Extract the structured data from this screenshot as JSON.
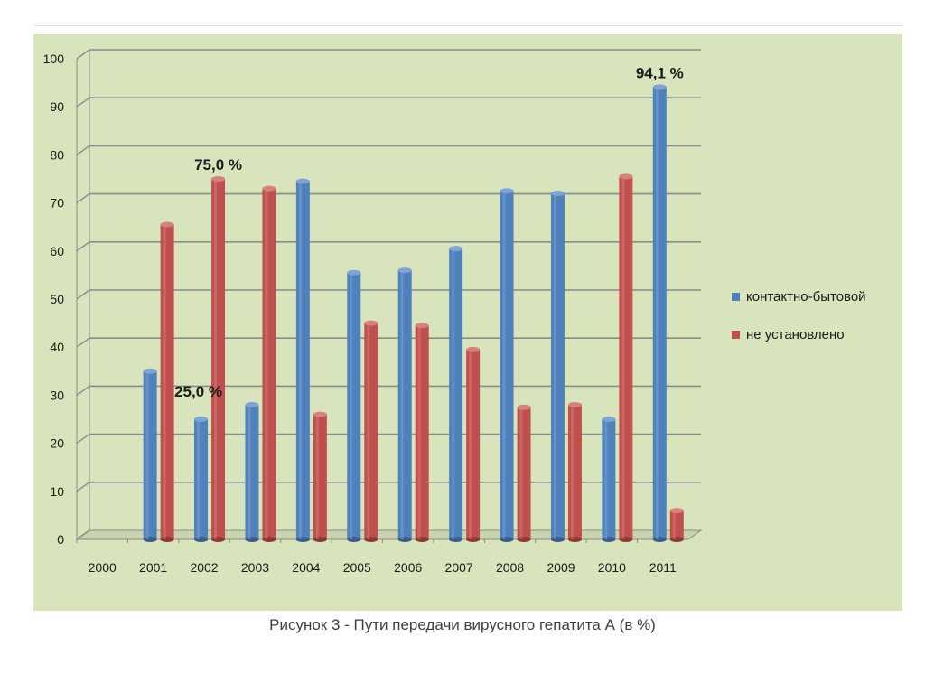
{
  "chart_data": {
    "type": "bar",
    "title": "",
    "xlabel": "",
    "ylabel": "",
    "ylim": [
      0,
      100
    ],
    "yticks": [
      0,
      10,
      20,
      30,
      40,
      50,
      60,
      70,
      80,
      90,
      100
    ],
    "categories": [
      "2000",
      "2001",
      "2002",
      "2003",
      "2004",
      "2005",
      "2006",
      "2007",
      "2008",
      "2009",
      "2010",
      "2011"
    ],
    "series": [
      {
        "name": "контактно-бытовой",
        "color": "#4f81bd",
        "values": [
          null,
          35,
          25,
          28,
          74.5,
          55.5,
          56,
          60.5,
          72.5,
          72,
          25,
          94.1
        ]
      },
      {
        "name": "не установлено",
        "color": "#c0504d",
        "values": [
          null,
          65.5,
          75,
          73,
          26,
          45,
          44.5,
          39.5,
          27.5,
          28,
          75.5,
          6
        ]
      }
    ],
    "annotations": [
      {
        "text": "94,1 %",
        "category": "2011",
        "series": 0
      },
      {
        "text": "75,0 %",
        "category": "2002",
        "series": 1
      },
      {
        "text": "25,0 %",
        "category": "2002",
        "series": 0
      }
    ],
    "legend_position": "right",
    "grid": true
  },
  "caption": "Рисунок 3 - Пути передачи вирусного гепатита А (в %)"
}
